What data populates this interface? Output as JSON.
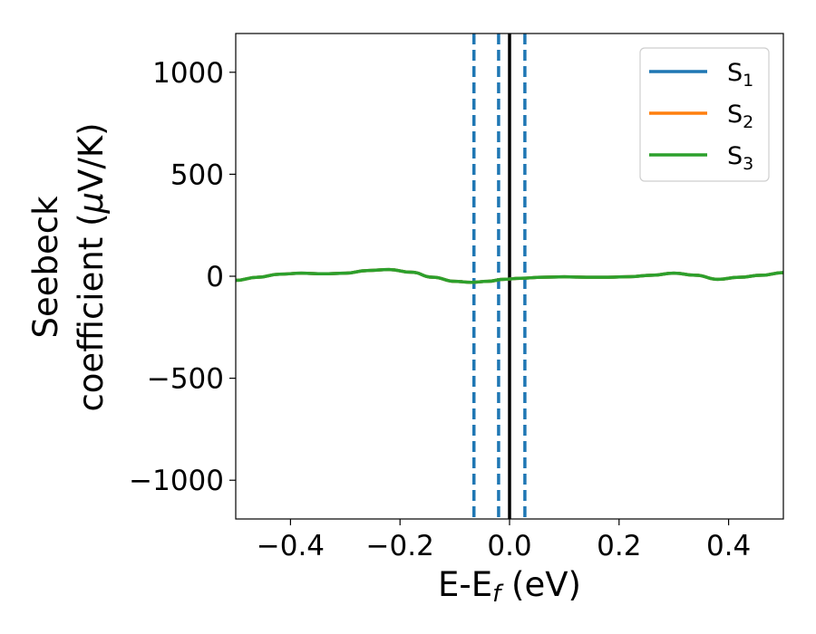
{
  "chart_data": {
    "type": "line",
    "xlabel": "E-E",
    "xlabel_sub": "f",
    "xlabel_unit": " (eV)",
    "ylabel_line1": "Seebeck",
    "ylabel_line2": "coefficient  (",
    "ylabel_mu": "μ",
    "ylabel_unit": "V/K)",
    "xlim": [
      -0.5,
      0.5
    ],
    "ylim": [
      -1190,
      1190
    ],
    "xticks": [
      -0.4,
      -0.2,
      0.0,
      0.2,
      0.4
    ],
    "xtick_labels": [
      "−0.4",
      "−0.2",
      "0.0",
      "0.2",
      "0.4"
    ],
    "yticks": [
      -1000,
      -500,
      0,
      500,
      1000
    ],
    "ytick_labels": [
      "−1000",
      "−500",
      "0",
      "500",
      "1000"
    ],
    "grid": false,
    "legend_position": "top-right",
    "legend": [
      {
        "name": "S",
        "sub": "1",
        "color": "#1f77b4"
      },
      {
        "name": "S",
        "sub": "2",
        "color": "#ff7f0e"
      },
      {
        "name": "S",
        "sub": "3",
        "color": "#2ca02c"
      }
    ],
    "vlines": [
      {
        "x": -0.065,
        "style": "dashed",
        "color": "#1f77b4"
      },
      {
        "x": -0.02,
        "style": "dashed",
        "color": "#1f77b4"
      },
      {
        "x": 0.028,
        "style": "dashed",
        "color": "#1f77b4"
      },
      {
        "x": 0.0,
        "style": "solid",
        "color": "#000000"
      }
    ],
    "x": [
      -0.5,
      -0.46,
      -0.42,
      -0.38,
      -0.34,
      -0.3,
      -0.26,
      -0.22,
      -0.18,
      -0.14,
      -0.1,
      -0.07,
      -0.04,
      -0.01,
      0.02,
      0.06,
      0.1,
      0.14,
      0.18,
      0.22,
      0.26,
      0.3,
      0.34,
      0.38,
      0.42,
      0.46,
      0.5
    ],
    "series": [
      {
        "color": "#1f77b4",
        "values": [
          -20,
          -5,
          10,
          15,
          12,
          15,
          28,
          33,
          20,
          -5,
          -25,
          -30,
          -25,
          -15,
          -10,
          -5,
          -3,
          -5,
          -5,
          -2,
          5,
          15,
          5,
          -15,
          -5,
          5,
          18
        ]
      },
      {
        "color": "#ff7f0e",
        "values": [
          -20,
          -5,
          10,
          15,
          12,
          15,
          28,
          33,
          20,
          -5,
          -25,
          -30,
          -25,
          -15,
          -10,
          -5,
          -3,
          -5,
          -5,
          -2,
          5,
          15,
          5,
          -15,
          -5,
          5,
          18
        ]
      },
      {
        "color": "#2ca02c",
        "values": [
          -20,
          -5,
          10,
          15,
          12,
          15,
          28,
          33,
          20,
          -5,
          -25,
          -30,
          -25,
          -15,
          -10,
          -5,
          -3,
          -5,
          -5,
          -2,
          5,
          15,
          5,
          -15,
          -5,
          5,
          18
        ]
      }
    ]
  }
}
